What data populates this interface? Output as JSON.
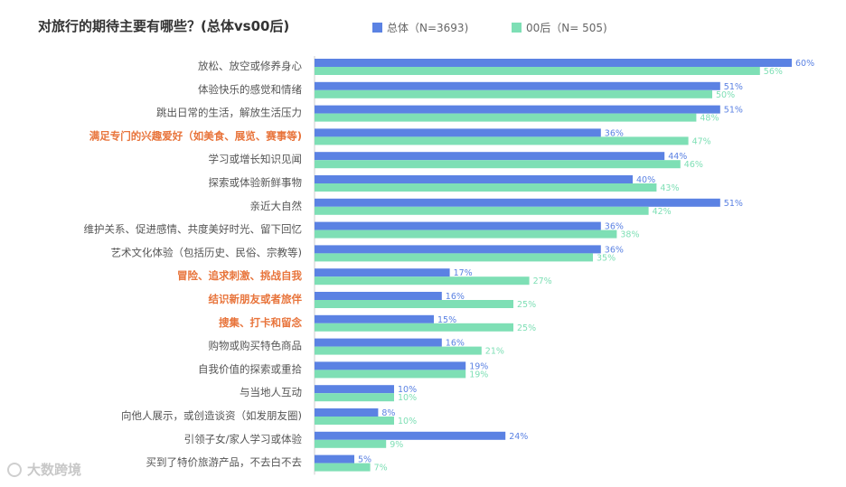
{
  "chart_data": {
    "type": "bar",
    "orientation": "horizontal",
    "title": "对旅行的期待主要有哪些？(总体vs00后)",
    "categories": [
      "放松、放空或修养身心",
      "体验快乐的感觉和情绪",
      "跳出日常的生活，解放生活压力",
      "满足专门的兴趣爱好（如美食、展览、赛事等)",
      "学习或增长知识见闻",
      "探索或体验新鲜事物",
      "亲近大自然",
      "维护关系、促进感情、共度美好时光、留下回忆",
      "艺术文化体验（包括历史、民俗、宗教等)",
      "冒险、追求刺激、挑战自我",
      "结识新朋友或者旅伴",
      "搜集、打卡和留念",
      "购物或购买特色商品",
      "自我价值的探索或重拾",
      "与当地人互动",
      "向他人展示，或创造谈资（如发朋友圈)",
      "引领子女/家人学习或体验",
      "买到了特价旅游产品，不去白不去"
    ],
    "highlighted_categories": [
      "满足专门的兴趣爱好（如美食、展览、赛事等)",
      "冒险、追求刺激、挑战自我",
      "结识新朋友或者旅伴",
      "搜集、打卡和留念"
    ],
    "series": [
      {
        "name": "总体（N=3693)",
        "color": "#5b82e3",
        "values": [
          60,
          51,
          51,
          36,
          44,
          40,
          51,
          36,
          36,
          17,
          16,
          15,
          16,
          19,
          10,
          8,
          24,
          5
        ]
      },
      {
        "name": "00后（N= 505)",
        "color": "#7edfb5",
        "values": [
          56,
          50,
          48,
          47,
          46,
          43,
          42,
          38,
          35,
          27,
          25,
          25,
          21,
          19,
          10,
          10,
          9,
          7
        ]
      }
    ],
    "value_suffix": "%",
    "xlim": [
      0,
      60
    ],
    "grid": false,
    "legend_position": "top",
    "label_color": "#555555",
    "highlight_color": "#e8743b"
  },
  "watermark": "大数跨境"
}
